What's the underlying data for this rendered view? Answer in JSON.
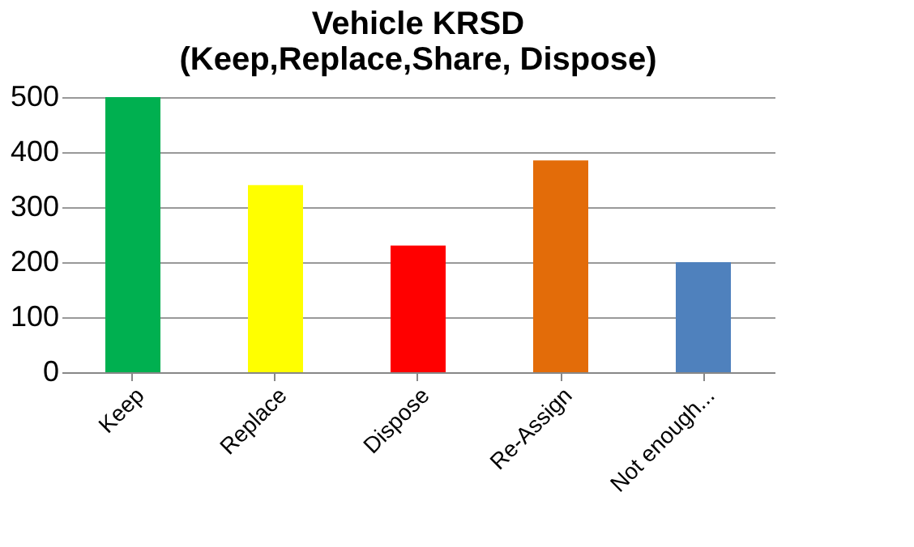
{
  "chart_data": {
    "type": "bar",
    "title": [
      "Vehicle KRSD",
      "(Keep,Replace,Share, Dispose)"
    ],
    "categories": [
      "Keep",
      "Replace",
      "Dispose",
      "Re-Assign",
      "Not enough..."
    ],
    "values": [
      500,
      340,
      230,
      385,
      200
    ],
    "colors": [
      "#00b050",
      "#ffff00",
      "#ff0000",
      "#e36c09",
      "#4f81bd"
    ],
    "ylim": [
      0,
      500
    ],
    "yticks": [
      0,
      100,
      200,
      300,
      400,
      500
    ],
    "grid": "y",
    "legend": false
  }
}
